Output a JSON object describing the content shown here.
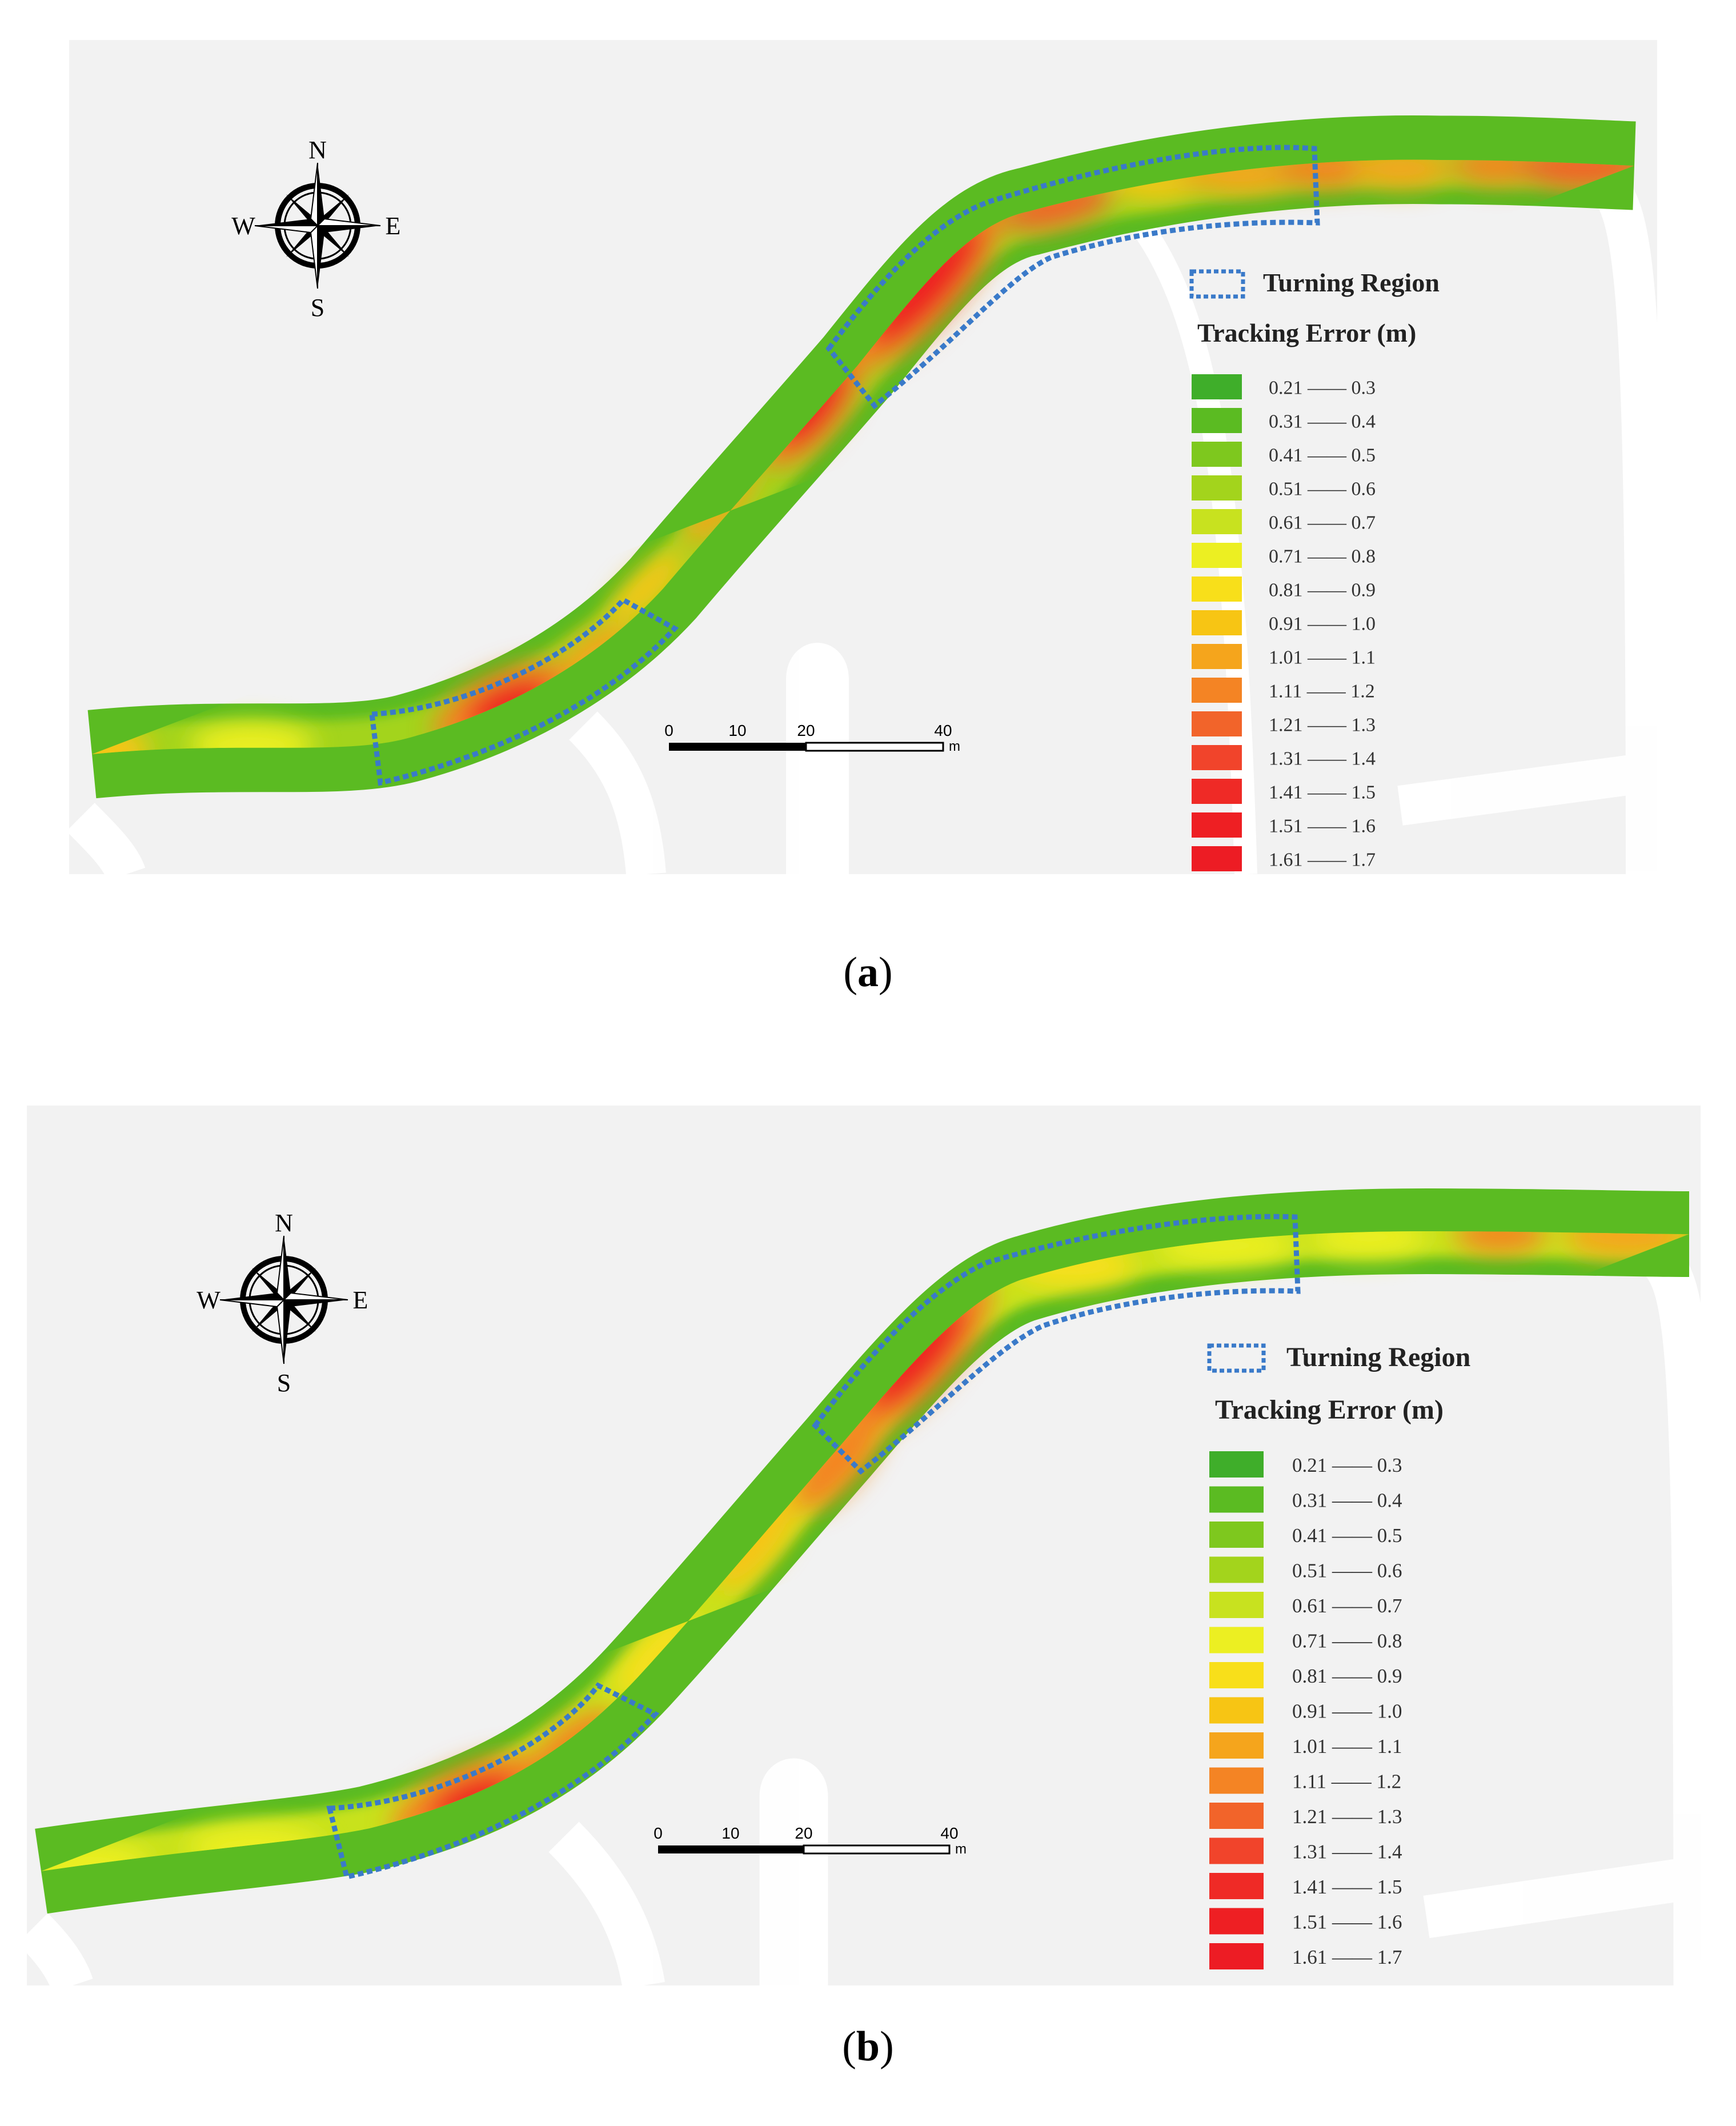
{
  "panels": [
    {
      "id": "a",
      "caption": "a",
      "compass": {
        "n": "N",
        "s": "S",
        "e": "E",
        "w": "W",
        "icon": "compass-rose-icon"
      },
      "legend": {
        "turning_region_label": "Turning Region",
        "title": "Tracking Error (m)",
        "entries": [
          {
            "range": "0.21 —— 0.3",
            "color": "#3fae2a"
          },
          {
            "range": "0.31 —— 0.4",
            "color": "#5bbb22"
          },
          {
            "range": "0.41 —— 0.5",
            "color": "#7ec81e"
          },
          {
            "range": "0.51 —— 0.6",
            "color": "#a3d41c"
          },
          {
            "range": "0.61 —— 0.7",
            "color": "#c8e21f"
          },
          {
            "range": "0.71 —— 0.8",
            "color": "#ecef22"
          },
          {
            "range": "0.81 —— 0.9",
            "color": "#f8df1a"
          },
          {
            "range": "0.91 —— 1.0",
            "color": "#f7c514"
          },
          {
            "range": "1.01 —— 1.1",
            "color": "#f5a51c"
          },
          {
            "range": "1.11 —— 1.2",
            "color": "#f48424"
          },
          {
            "range": "1.21 —— 1.3",
            "color": "#f2642a"
          },
          {
            "range": "1.31 —— 1.4",
            "color": "#f1442b"
          },
          {
            "range": "1.41 —— 1.5",
            "color": "#ef2a26"
          },
          {
            "range": "1.51 —— 1.6",
            "color": "#ee1f23"
          },
          {
            "range": "1.61 —— 1.7",
            "color": "#ed1c24"
          }
        ]
      },
      "scale_bar": {
        "ticks": [
          "0",
          "10",
          "20",
          "40"
        ],
        "unit": "m"
      }
    },
    {
      "id": "b",
      "caption": "b",
      "compass": {
        "n": "N",
        "s": "S",
        "e": "E",
        "w": "W",
        "icon": "compass-rose-icon"
      },
      "legend": {
        "turning_region_label": "Turning Region",
        "title": "Tracking Error (m)",
        "entries": [
          {
            "range": "0.21 —— 0.3",
            "color": "#3fae2a"
          },
          {
            "range": "0.31 —— 0.4",
            "color": "#5bbb22"
          },
          {
            "range": "0.41 —— 0.5",
            "color": "#7ec81e"
          },
          {
            "range": "0.51 —— 0.6",
            "color": "#a3d41c"
          },
          {
            "range": "0.61 —— 0.7",
            "color": "#c8e21f"
          },
          {
            "range": "0.71 —— 0.8",
            "color": "#ecef22"
          },
          {
            "range": "0.81 —— 0.9",
            "color": "#f8df1a"
          },
          {
            "range": "0.91 —— 1.0",
            "color": "#f7c514"
          },
          {
            "range": "1.01 —— 1.1",
            "color": "#f5a51c"
          },
          {
            "range": "1.11 —— 1.2",
            "color": "#f48424"
          },
          {
            "range": "1.21 —— 1.3",
            "color": "#f2642a"
          },
          {
            "range": "1.31 —— 1.4",
            "color": "#f1442b"
          },
          {
            "range": "1.41 —— 1.5",
            "color": "#ef2a26"
          },
          {
            "range": "1.51 —— 1.6",
            "color": "#ee1f23"
          },
          {
            "range": "1.61 —— 1.7",
            "color": "#ed1c24"
          }
        ]
      },
      "scale_bar": {
        "ticks": [
          "0",
          "10",
          "20",
          "40"
        ],
        "unit": "m"
      }
    }
  ],
  "colors": {
    "background": "#f2f2f2",
    "road_outline": "#ffffff",
    "turning_region_border": "#3a7ac9",
    "track_green": "#5bbb22",
    "track_yellow": "#ecef22",
    "track_red": "#ed1c24"
  }
}
